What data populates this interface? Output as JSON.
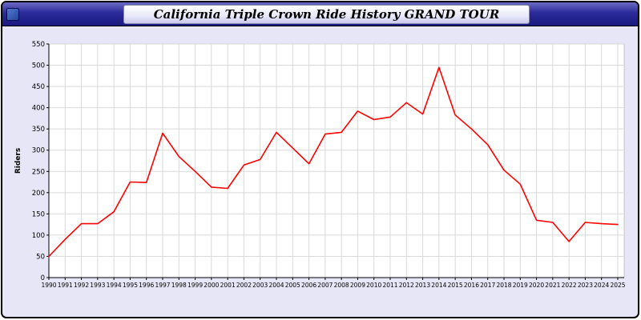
{
  "window": {
    "title": "California Triple Crown Ride History GRAND TOUR"
  },
  "chart_data": {
    "type": "line",
    "title": "California Triple Crown Ride History GRAND TOUR",
    "xlabel": "",
    "ylabel": "Riders",
    "ylim": [
      0,
      550
    ],
    "ytick_step": 50,
    "grid": true,
    "legend": "none",
    "x": [
      1990,
      1991,
      1992,
      1993,
      1994,
      1995,
      1996,
      1997,
      1998,
      1999,
      2000,
      2001,
      2002,
      2003,
      2004,
      2005,
      2006,
      2007,
      2008,
      2009,
      2010,
      2011,
      2012,
      2013,
      2014,
      2015,
      2016,
      2017,
      2018,
      2019,
      2020,
      2021,
      2022,
      2023,
      2024,
      2025
    ],
    "series": [
      {
        "name": "Riders",
        "color": "#ff0000",
        "values": [
          50,
          90,
          127,
          127,
          155,
          225,
          224,
          340,
          285,
          250,
          213,
          210,
          265,
          278,
          342,
          305,
          268,
          338,
          342,
          392,
          372,
          378,
          412,
          385,
          495,
          383,
          350,
          313,
          253,
          220,
          135,
          130,
          85,
          130,
          127,
          125
        ]
      }
    ]
  }
}
